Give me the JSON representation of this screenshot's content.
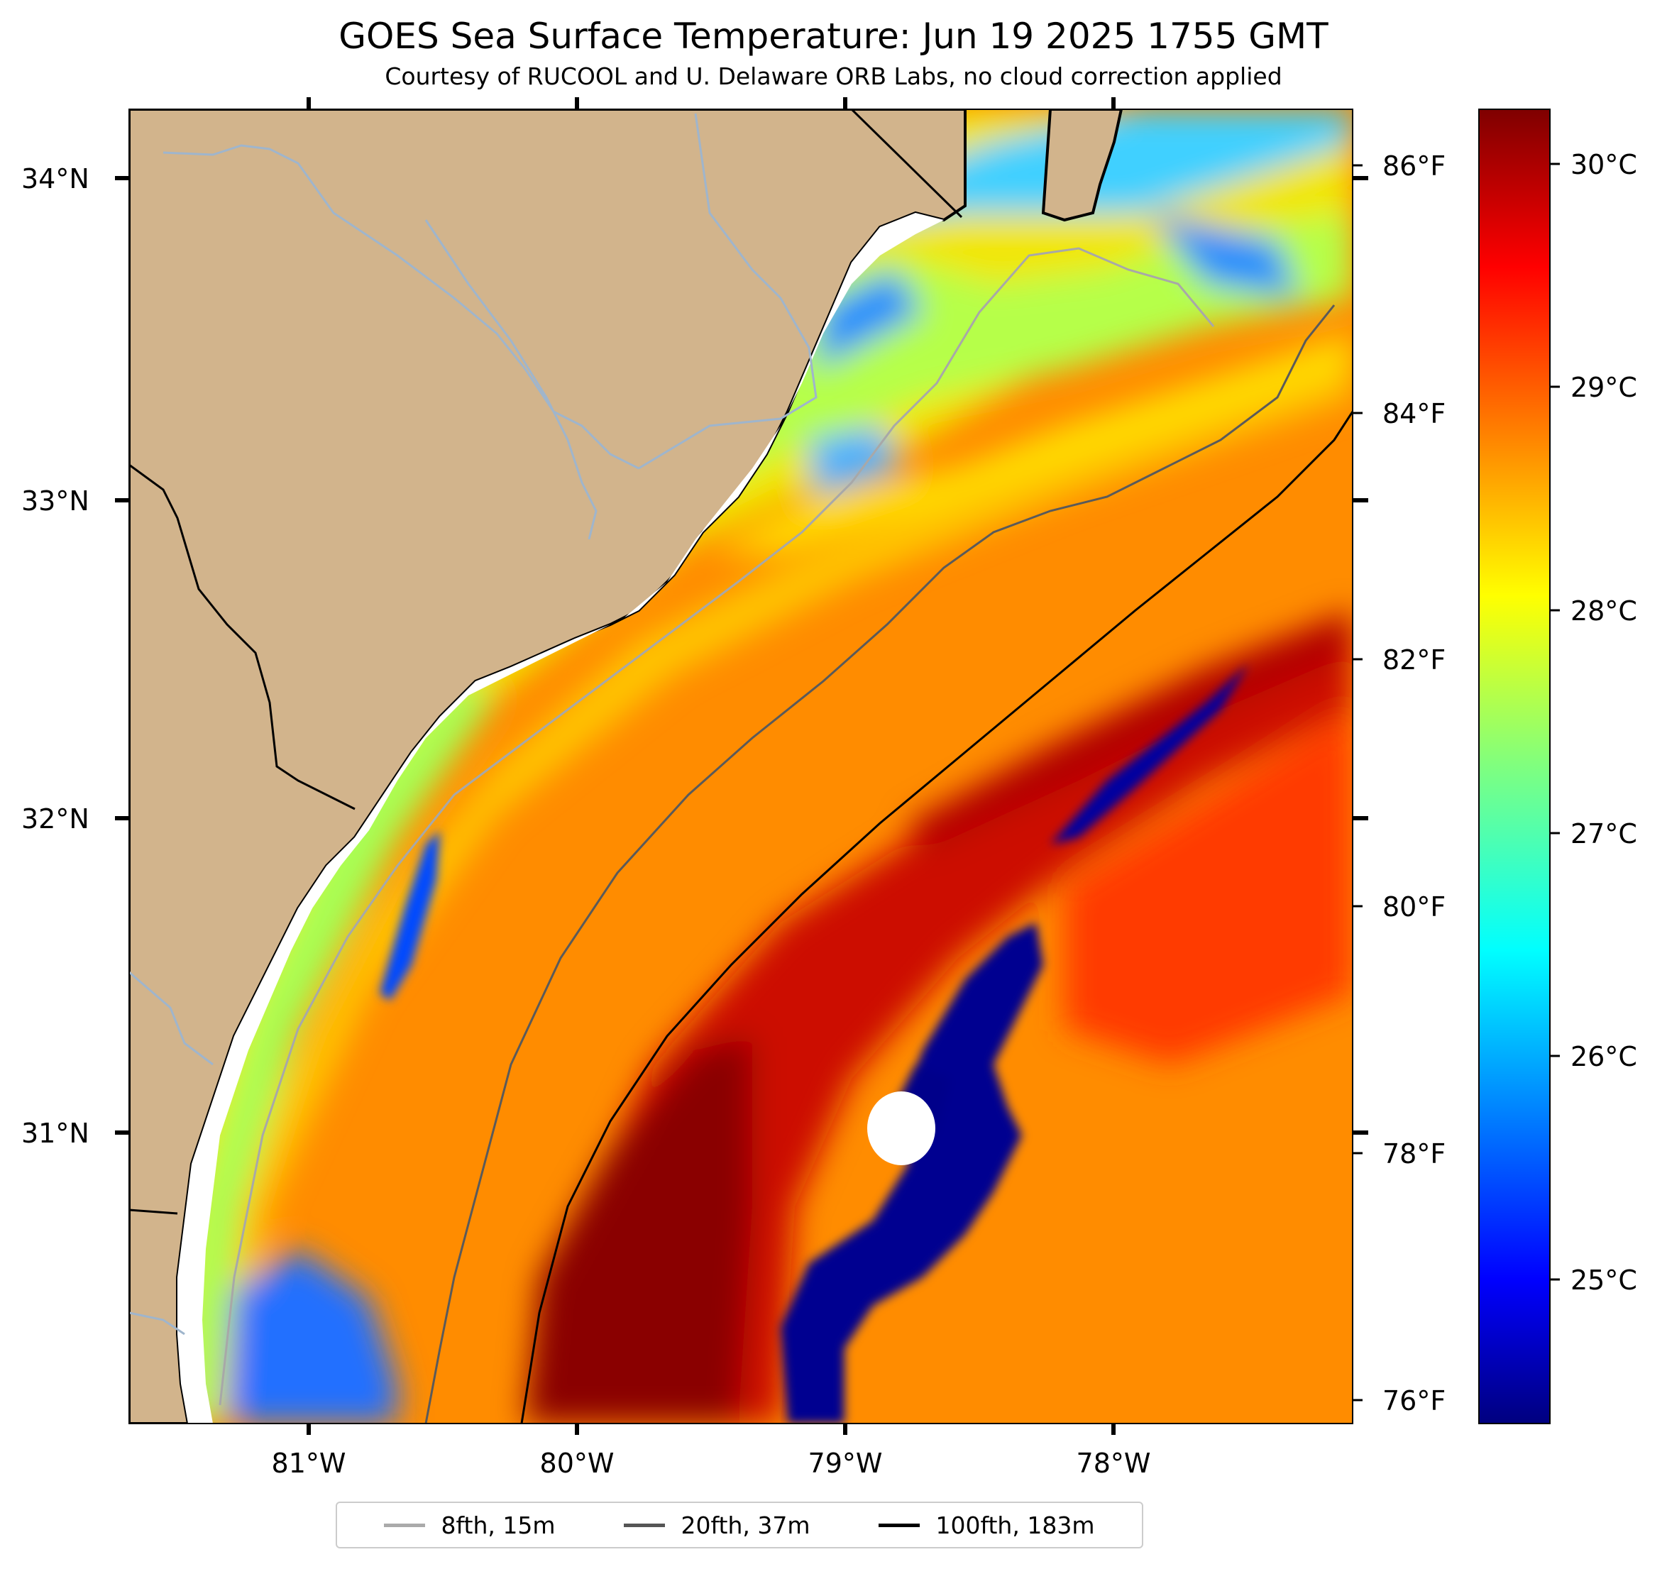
{
  "title": "GOES Sea Surface Temperature: Jun 19 2025 1755 GMT",
  "subtitle": "Courtesy of RUCOOL and U. Delaware ORB Labs, no cloud correction applied",
  "map": {
    "lon_range": [
      -81.67,
      -77.12
    ],
    "lat_range": [
      30.09,
      34.22
    ],
    "land_color": "#d2b48c",
    "river_color": "#9fb5cc",
    "lat_labels": [
      "34°N",
      "33°N",
      "32°N",
      "31°N"
    ],
    "lon_labels": [
      "81°W",
      "80°W",
      "79°W",
      "78°W"
    ],
    "fahrenheit_labels": [
      "86°F",
      "84°F",
      "82°F",
      "80°F",
      "78°F",
      "76°F"
    ]
  },
  "colorbar": {
    "colormap": "jet",
    "min_c": 24.4,
    "max_c": 30.2,
    "tick_labels": [
      "30°C",
      "29°C",
      "28°C",
      "27°C",
      "26°C",
      "25°C"
    ]
  },
  "legend": [
    {
      "label": "8fth, 15m",
      "color": "#aaaaaa"
    },
    {
      "label": "20fth, 37m",
      "color": "#555555"
    },
    {
      "label": "100fth, 183m",
      "color": "#000000"
    }
  ]
}
